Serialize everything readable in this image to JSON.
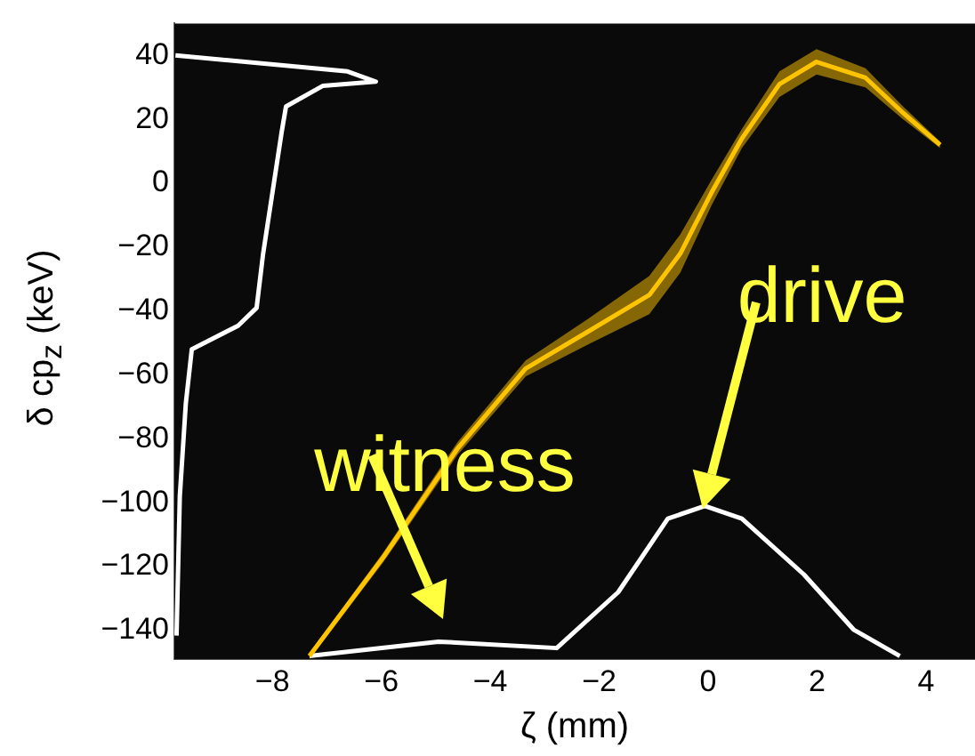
{
  "chart_data": {
    "type": "line",
    "xlabel": "ζ (mm)",
    "ylabel": "δ cp$_{z}$ (keV)",
    "xlim": [
      -9.8,
      4.9
    ],
    "ylim": [
      -149,
      50
    ],
    "xticks": [
      -8,
      -6,
      -4,
      -2,
      0,
      2,
      4
    ],
    "yticks": [
      -140,
      -120,
      -100,
      -80,
      -60,
      -40,
      -20,
      0,
      20,
      40
    ],
    "grid": false,
    "legend": false,
    "marker": "none",
    "line_style": "solid",
    "series": [
      {
        "color": "#ffc400",
        "x": [
          -7.32,
          -5.96,
          -4.6,
          -3.35,
          -2.21,
          -1.08,
          -0.51,
          0.06,
          0.62,
          1.31,
          1.99,
          2.89,
          3.58,
          4.26
        ],
        "values": [
          -148,
          -117,
          -83,
          -58,
          -46.5,
          -35,
          -22,
          -3,
          14,
          31,
          38,
          33,
          22,
          12
        ],
        "lower": [
          -149,
          -118.5,
          -85,
          -60.5,
          -50.5,
          -41,
          -28,
          -7,
          11,
          27,
          34,
          30,
          20,
          11
        ],
        "upper": [
          -147,
          -115.5,
          -81,
          -55.5,
          -42.5,
          -29,
          -16,
          1,
          17,
          35,
          42,
          36,
          24,
          13
        ]
      },
      {
        "color": "#ffffff",
        "x": [
          -7.32,
          -4.95,
          -2.78,
          -1.65,
          -0.74,
          -0.06,
          0.62,
          1.76,
          2.67,
          3.52
        ],
        "values": [
          -148,
          -143.5,
          -145.5,
          -128,
          -105,
          -101,
          -105,
          -122.5,
          -139.7,
          -148
        ]
      },
      {
        "color": "#ffffff",
        "x": [
          -9.78,
          -6.62,
          -6.1,
          -7.07,
          -7.75,
          -7.83,
          -8.0,
          -8.17,
          -8.29,
          -8.63,
          -9.48,
          -9.59,
          -9.7,
          -9.76
        ],
        "values": [
          40,
          35,
          31.8,
          30.5,
          24,
          16,
          -3,
          -22,
          -39,
          -44.6,
          -52,
          -69,
          -98,
          -141.6
        ]
      }
    ],
    "annotations": [
      "witness",
      "drive"
    ]
  }
}
